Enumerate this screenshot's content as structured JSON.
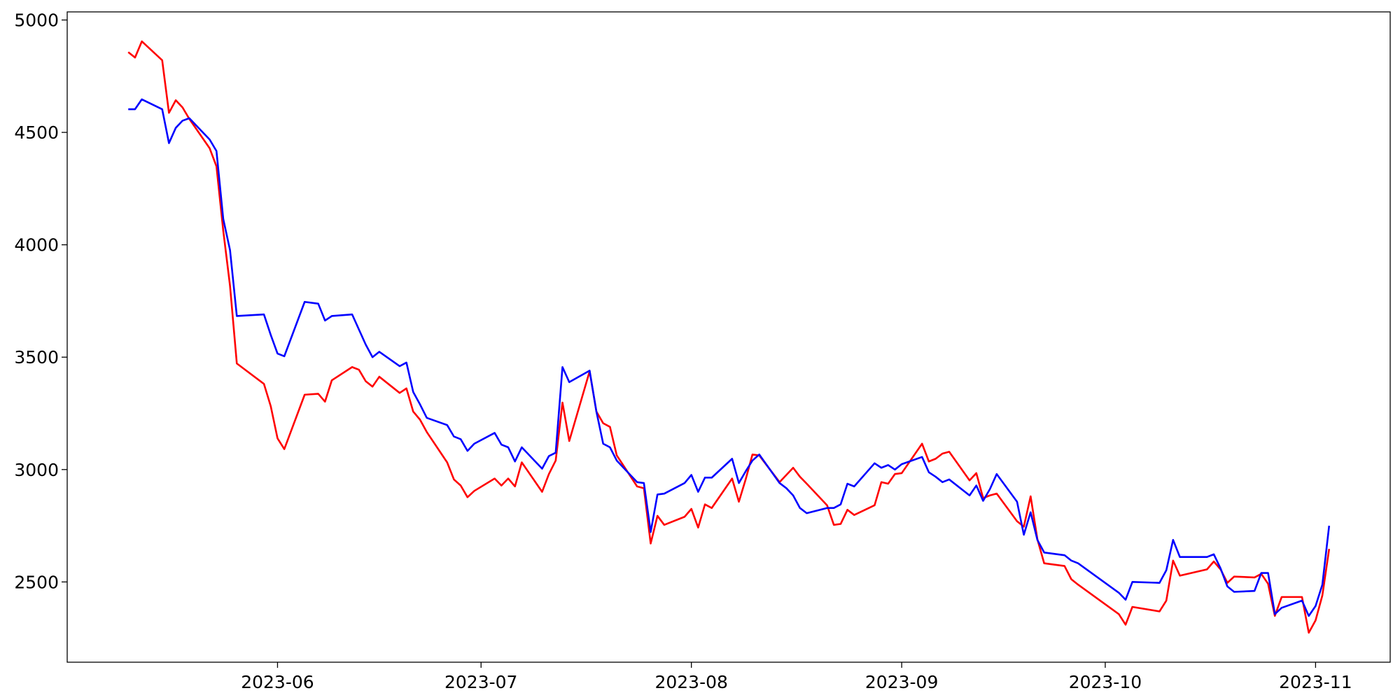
{
  "chart_data": {
    "type": "line",
    "x": [
      "2023-05-10",
      "2023-05-11",
      "2023-05-12",
      "2023-05-15",
      "2023-05-16",
      "2023-05-17",
      "2023-05-18",
      "2023-05-19",
      "2023-05-22",
      "2023-05-23",
      "2023-05-24",
      "2023-05-25",
      "2023-05-26",
      "2023-05-30",
      "2023-05-31",
      "2023-06-01",
      "2023-06-02",
      "2023-06-05",
      "2023-06-07",
      "2023-06-08",
      "2023-06-09",
      "2023-06-12",
      "2023-06-13",
      "2023-06-14",
      "2023-06-15",
      "2023-06-16",
      "2023-06-19",
      "2023-06-20",
      "2023-06-21",
      "2023-06-22",
      "2023-06-23",
      "2023-06-26",
      "2023-06-27",
      "2023-06-28",
      "2023-06-29",
      "2023-06-30",
      "2023-07-03",
      "2023-07-04",
      "2023-07-05",
      "2023-07-06",
      "2023-07-07",
      "2023-07-10",
      "2023-07-11",
      "2023-07-12",
      "2023-07-13",
      "2023-07-14",
      "2023-07-17",
      "2023-07-18",
      "2023-07-19",
      "2023-07-20",
      "2023-07-21",
      "2023-07-24",
      "2023-07-25",
      "2023-07-26",
      "2023-07-27",
      "2023-07-28",
      "2023-07-31",
      "2023-08-01",
      "2023-08-02",
      "2023-08-03",
      "2023-08-04",
      "2023-08-07",
      "2023-08-08",
      "2023-08-09",
      "2023-08-10",
      "2023-08-11",
      "2023-08-14",
      "2023-08-15",
      "2023-08-16",
      "2023-08-17",
      "2023-08-18",
      "2023-08-21",
      "2023-08-22",
      "2023-08-23",
      "2023-08-24",
      "2023-08-25",
      "2023-08-28",
      "2023-08-29",
      "2023-08-30",
      "2023-08-31",
      "2023-09-01",
      "2023-09-04",
      "2023-09-05",
      "2023-09-06",
      "2023-09-07",
      "2023-09-08",
      "2023-09-11",
      "2023-09-12",
      "2023-09-13",
      "2023-09-14",
      "2023-09-15",
      "2023-09-18",
      "2023-09-19",
      "2023-09-20",
      "2023-09-21",
      "2023-09-22",
      "2023-09-25",
      "2023-09-26",
      "2023-09-27",
      "2023-10-03",
      "2023-10-04",
      "2023-10-05",
      "2023-10-09",
      "2023-10-10",
      "2023-10-11",
      "2023-10-12",
      "2023-10-16",
      "2023-10-17",
      "2023-10-18",
      "2023-10-19",
      "2023-10-20",
      "2023-10-23",
      "2023-10-24",
      "2023-10-25",
      "2023-10-26",
      "2023-10-27",
      "2023-10-30",
      "2023-10-31",
      "2023-11-01",
      "2023-11-02",
      "2023-11-03"
    ],
    "series": [
      {
        "color": "#ff0000",
        "values": [
          4857,
          4833,
          4905,
          4821,
          4587,
          4643,
          4611,
          4560,
          4429,
          4349,
          4063,
          3817,
          3472,
          3381,
          3282,
          3139,
          3091,
          3333,
          3337,
          3302,
          3397,
          3456,
          3444,
          3393,
          3369,
          3413,
          3341,
          3361,
          3258,
          3222,
          3167,
          3032,
          2956,
          2929,
          2877,
          2905,
          2960,
          2929,
          2960,
          2925,
          3032,
          2901,
          2980,
          3040,
          3298,
          3127,
          3437,
          3258,
          3206,
          3190,
          3063,
          2925,
          2917,
          2671,
          2794,
          2754,
          2790,
          2825,
          2742,
          2845,
          2829,
          2960,
          2857,
          2956,
          3067,
          3063,
          2944,
          2976,
          3008,
          2968,
          2937,
          2841,
          2754,
          2758,
          2821,
          2798,
          2841,
          2944,
          2937,
          2980,
          2984,
          3115,
          3036,
          3048,
          3071,
          3079,
          2952,
          2984,
          2873,
          2885,
          2893,
          2770,
          2746,
          2881,
          2690,
          2583,
          2571,
          2512,
          2488,
          2357,
          2310,
          2389,
          2369,
          2417,
          2595,
          2528,
          2556,
          2591,
          2556,
          2496,
          2524,
          2520,
          2536,
          2492,
          2349,
          2433,
          2433,
          2274,
          2329,
          2440,
          2647
        ]
      },
      {
        "color": "#0000ff",
        "values": [
          4603,
          4603,
          4647,
          4603,
          4452,
          4520,
          4552,
          4563,
          4468,
          4417,
          4115,
          3976,
          3683,
          3690,
          3599,
          3516,
          3504,
          3746,
          3738,
          3663,
          3683,
          3690,
          3623,
          3556,
          3500,
          3524,
          3460,
          3476,
          3345,
          3290,
          3230,
          3198,
          3147,
          3135,
          3083,
          3115,
          3163,
          3111,
          3099,
          3036,
          3099,
          3004,
          3060,
          3075,
          3456,
          3389,
          3440,
          3258,
          3115,
          3099,
          3040,
          2944,
          2940,
          2722,
          2889,
          2893,
          2940,
          2976,
          2901,
          2964,
          2964,
          3048,
          2940,
          2992,
          3040,
          3067,
          2940,
          2917,
          2885,
          2829,
          2806,
          2829,
          2829,
          2845,
          2937,
          2925,
          3028,
          3008,
          3020,
          3000,
          3024,
          3056,
          2988,
          2968,
          2944,
          2956,
          2885,
          2929,
          2861,
          2913,
          2980,
          2857,
          2710,
          2810,
          2687,
          2631,
          2619,
          2595,
          2583,
          2452,
          2421,
          2500,
          2496,
          2552,
          2687,
          2611,
          2611,
          2623,
          2560,
          2480,
          2456,
          2460,
          2540,
          2540,
          2357,
          2385,
          2417,
          2349,
          2393,
          2488,
          2750
        ]
      }
    ],
    "xlim": [
      "2023-05-01",
      "2023-11-12"
    ],
    "xticks": [
      {
        "value": "2023-06-01",
        "label": "2023-06"
      },
      {
        "value": "2023-07-01",
        "label": "2023-07"
      },
      {
        "value": "2023-08-01",
        "label": "2023-08"
      },
      {
        "value": "2023-09-01",
        "label": "2023-09"
      },
      {
        "value": "2023-10-01",
        "label": "2023-10"
      },
      {
        "value": "2023-11-01",
        "label": "2023-11"
      }
    ],
    "ylim": [
      2143,
      5036
    ],
    "yticks": [
      2500,
      3000,
      3500,
      4000,
      4500,
      5000
    ],
    "grid": false
  }
}
